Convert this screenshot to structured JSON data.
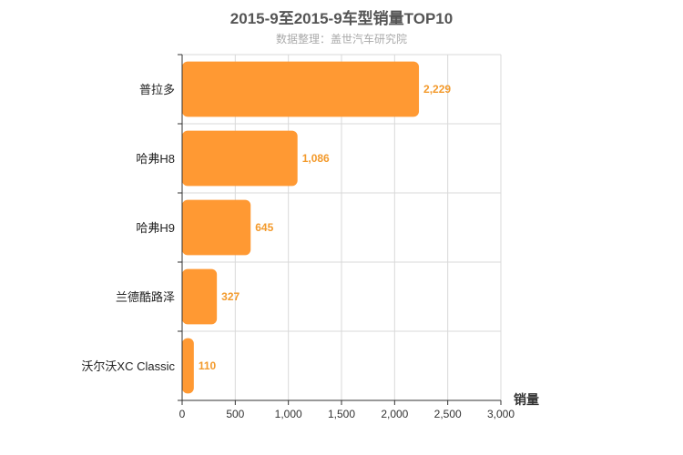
{
  "header": {
    "title": "2015-9至2015-9车型销量TOP10",
    "subtitle": "数据整理：盖世汽车研究院"
  },
  "colors": {
    "bar": "#ff9933",
    "grid": "#d9d9d9",
    "axis": "#333333",
    "value_label": "#f39a2c"
  },
  "chart_data": {
    "type": "bar",
    "orientation": "horizontal",
    "title": "2015-9至2015-9车型销量TOP10",
    "subtitle": "数据整理：盖世汽车研究院",
    "categories": [
      "普拉多",
      "哈弗H8",
      "哈弗H9",
      "兰德酷路泽",
      "沃尔沃XC Classic"
    ],
    "values": [
      2229,
      1086,
      645,
      327,
      110
    ],
    "value_labels": [
      "2,229",
      "1,086",
      "645",
      "327",
      "110"
    ],
    "xlabel": "销量",
    "ylabel": "",
    "xlim": [
      0,
      3000
    ],
    "xticks": [
      0,
      500,
      1000,
      1500,
      2000,
      2500,
      3000
    ],
    "xtick_labels": [
      "0",
      "500",
      "1,000",
      "1,500",
      "2,000",
      "2,500",
      "3,000"
    ],
    "grid": true,
    "legend": "none"
  }
}
